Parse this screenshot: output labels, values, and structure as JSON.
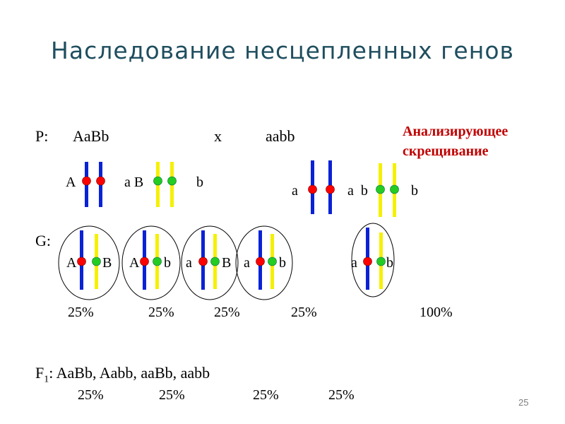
{
  "title": "Наследование несцепленных генов",
  "note": {
    "line1": "Анализирующее",
    "line2": "скрещивание"
  },
  "parents": {
    "prefix": "P:",
    "parent1": "AaBb",
    "cross": "x",
    "parent2": "aabb",
    "labels": {
      "p1_A": "A",
      "p1_aB": "a B",
      "p1_b": "b",
      "p2_a1": "a",
      "p2_ab": "a  b",
      "p2_b": "b"
    }
  },
  "gametes": {
    "prefix": "G:",
    "items": [
      {
        "left": "A",
        "right": "B",
        "percent": "25%"
      },
      {
        "left": "A",
        "right": "b",
        "percent": "25%"
      },
      {
        "left": "a",
        "right": "B",
        "percent": "25%"
      },
      {
        "left": "a",
        "right": "b",
        "percent": "25%"
      },
      {
        "left": "a",
        "right": "b",
        "percent": "100%"
      }
    ]
  },
  "f1": {
    "prefix": "F",
    "subscript": "1",
    "genotypes": ": AaBb, Aabb, aaBb, aabb",
    "percents": [
      "25%",
      "25%",
      "25%",
      "25%"
    ]
  },
  "page_number": "25",
  "colors": {
    "title": "#1f4e5f",
    "note": "#c00000",
    "chromosome_1": "#0a22d6",
    "chromosome_2": "#f5f000",
    "allele_dominant_marker": "#ff0000",
    "allele_second_marker": "#22cc22"
  }
}
